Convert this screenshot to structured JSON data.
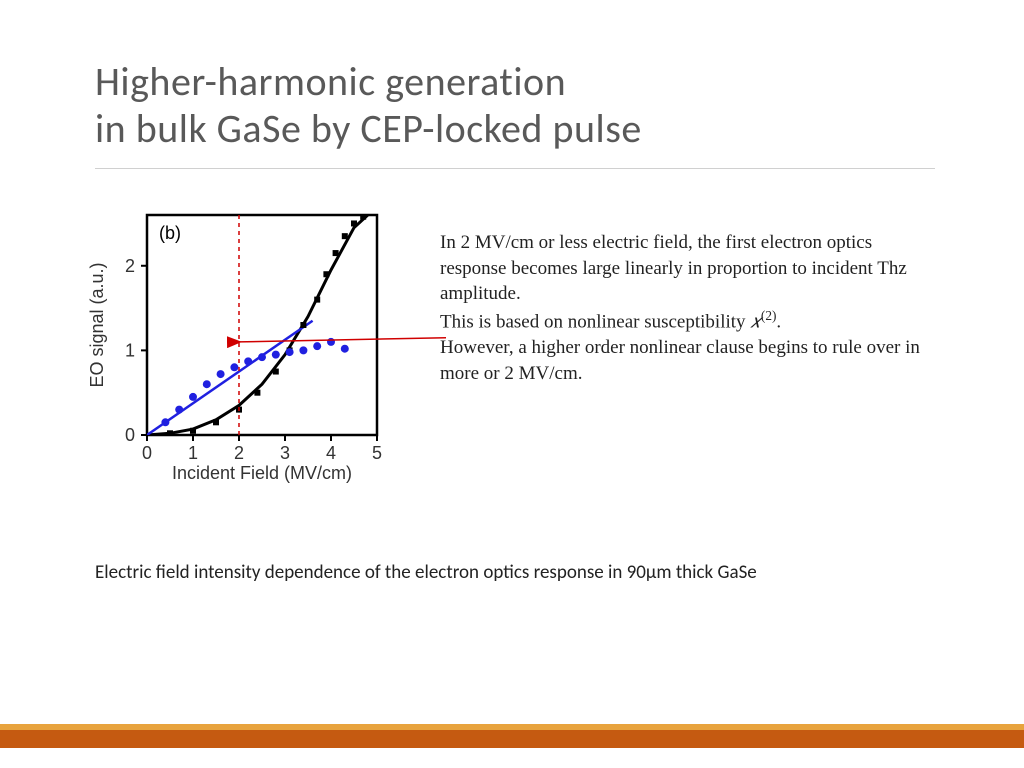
{
  "title": {
    "line1": "Higher-harmonic generation",
    "line2": "in bulk GaSe by CEP-locked pulse",
    "color": "#595959",
    "fontsize": 40,
    "fontweight": 300
  },
  "rule_color": "#d0d0d0",
  "chart": {
    "type": "scatter+line",
    "panel_label": "(b)",
    "panel_label_fontsize": 18,
    "xlabel": "Incident Field (MV/cm)",
    "ylabel": "EO signal (a.u.)",
    "label_fontsize": 18,
    "label_color": "#333333",
    "xlim": [
      0,
      5
    ],
    "ylim": [
      0,
      2.6
    ],
    "xticks": [
      0,
      1,
      2,
      3,
      4,
      5
    ],
    "yticks": [
      0,
      1,
      2
    ],
    "tick_fontsize": 18,
    "axis_color": "#000000",
    "axis_linewidth": 2.5,
    "plot_bg": "#ffffff",
    "series": {
      "blue_points": {
        "x": [
          0.4,
          0.7,
          1.0,
          1.3,
          1.6,
          1.9,
          2.2,
          2.5,
          2.8,
          3.1,
          3.4,
          3.7,
          4.0,
          4.3
        ],
        "y": [
          0.15,
          0.3,
          0.45,
          0.6,
          0.72,
          0.8,
          0.87,
          0.92,
          0.95,
          0.98,
          1.0,
          1.05,
          1.1,
          1.02
        ],
        "marker": "circle",
        "marker_size": 6,
        "color": "#2020e0"
      },
      "blue_line": {
        "x": [
          0,
          3.6
        ],
        "y": [
          0,
          1.35
        ],
        "color": "#2020e0",
        "linewidth": 2.5
      },
      "black_points": {
        "x": [
          0.5,
          1.0,
          1.5,
          2.0,
          2.4,
          2.8,
          3.1,
          3.4,
          3.7,
          3.9,
          4.1,
          4.3,
          4.5,
          4.7
        ],
        "y": [
          0.02,
          0.05,
          0.15,
          0.3,
          0.5,
          0.75,
          1.0,
          1.3,
          1.6,
          1.9,
          2.15,
          2.35,
          2.5,
          2.58
        ],
        "marker": "square",
        "marker_size": 6,
        "color": "#000000"
      },
      "black_curve": {
        "x": [
          0,
          0.5,
          1.0,
          1.5,
          2.0,
          2.5,
          3.0,
          3.5,
          4.0,
          4.5,
          4.8
        ],
        "y": [
          0,
          0.02,
          0.07,
          0.18,
          0.35,
          0.6,
          0.95,
          1.4,
          1.95,
          2.45,
          2.6
        ],
        "color": "#000000",
        "linewidth": 3
      }
    },
    "annotations": {
      "vline": {
        "x": 2.0,
        "color": "#d00000",
        "dash": "4,4",
        "linewidth": 1.5
      },
      "pointer": {
        "from_x": 6.5,
        "from_y": 1.15,
        "to_x": 2.0,
        "to_y": 1.1,
        "color": "#d00000",
        "linewidth": 1.5
      }
    }
  },
  "explain": {
    "p1": "In 2 MV/cm or less electric field, the first electron optics response becomes large linearly in proportion to incident Thz amplitude.",
    "p2a": "This is based on nonlinear susceptibility ",
    "p2_chi": "𝑥",
    "p2_sup": "(2)",
    "p2b": ".",
    "p3": "However, a  higher order nonlinear clause begins to rule over in more or 2 MV/cm.",
    "fontsize": 19,
    "color": "#222222"
  },
  "caption": {
    "text": "Electric field intensity dependence of the electron optics response in 90μm thick GaSe",
    "fontsize": 19,
    "color": "#222222"
  },
  "footer": {
    "thin_color": "#e8a33d",
    "thick_color": "#c55a11"
  }
}
